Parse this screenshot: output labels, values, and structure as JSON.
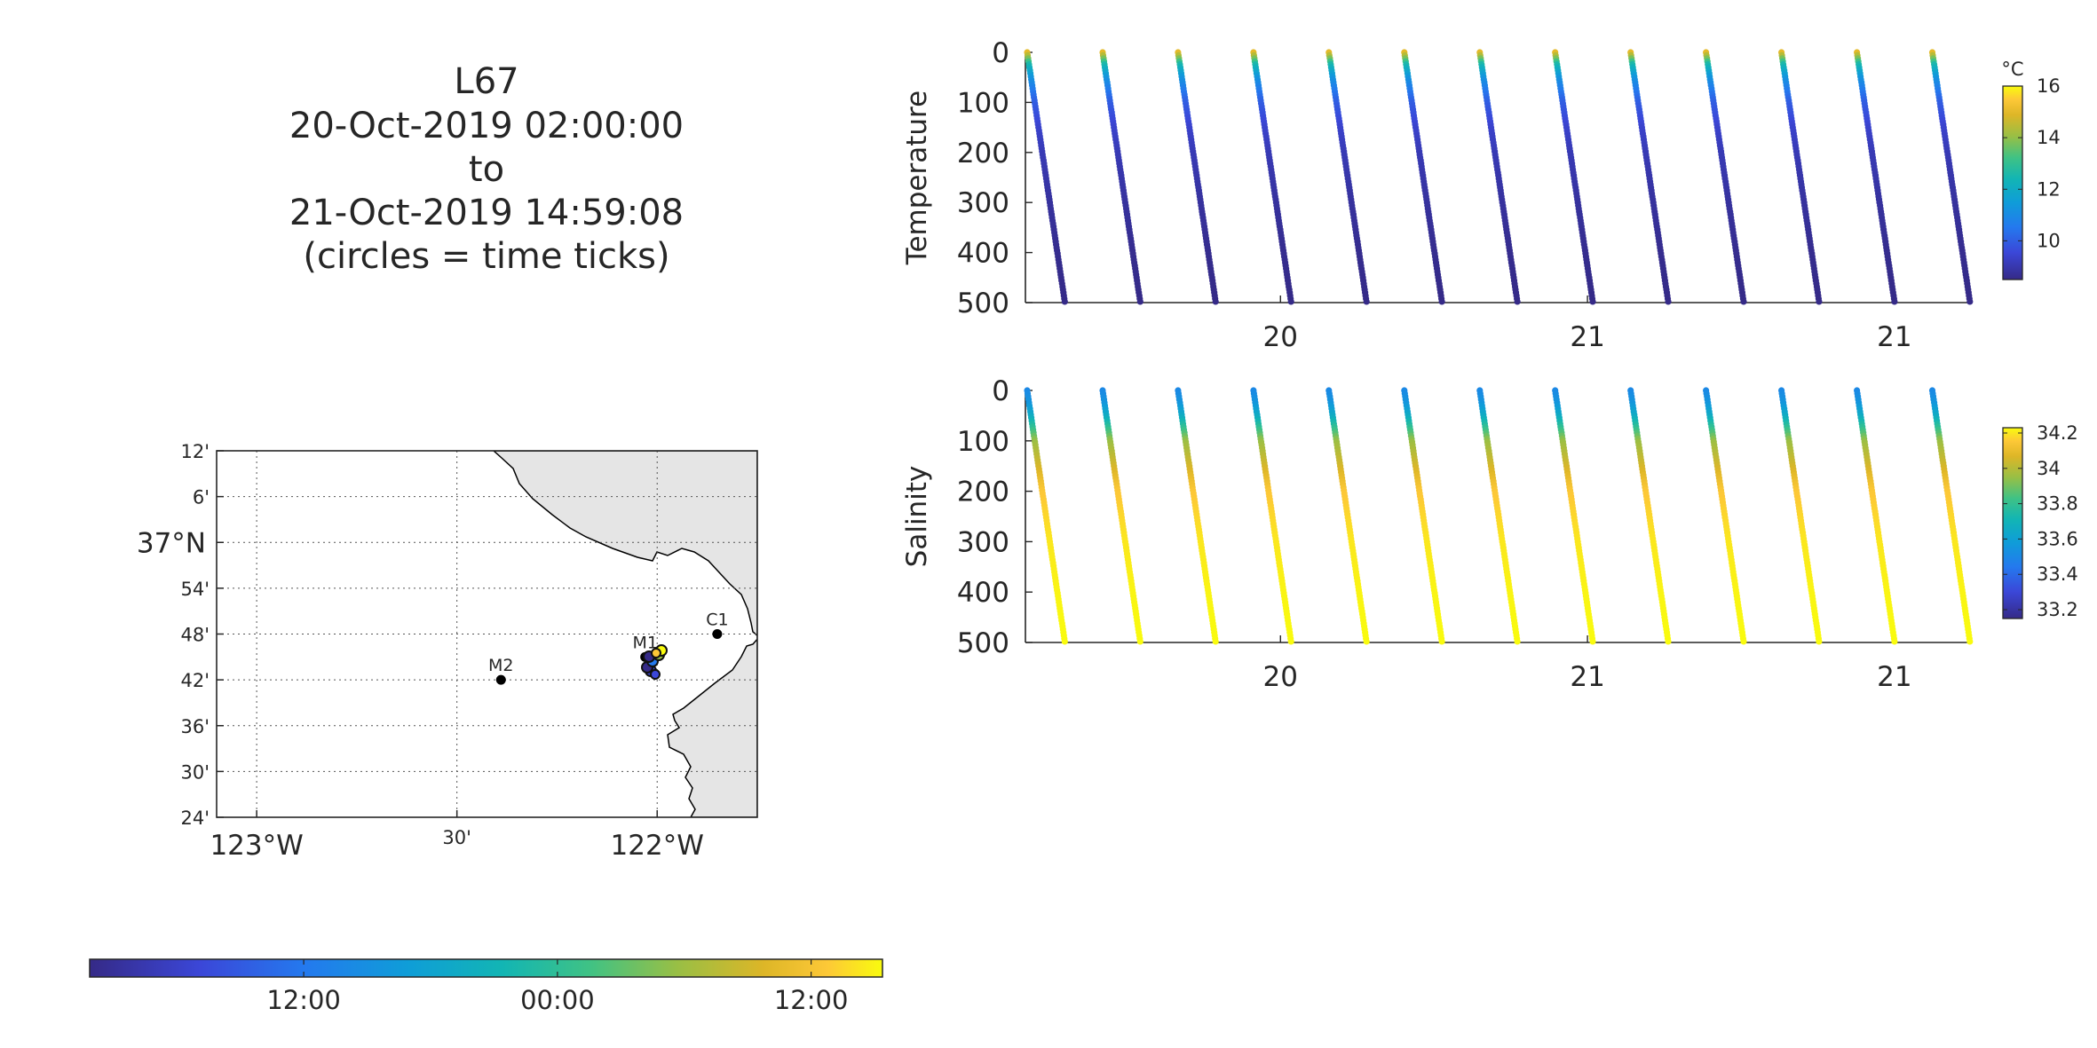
{
  "header": {
    "lines": [
      "L67",
      "20-Oct-2019 02:00:00",
      "to",
      "21-Oct-2019 14:59:08",
      "(circles = time ticks)"
    ]
  },
  "map": {
    "lat_ticks": [
      "12'",
      "6'",
      "37°N",
      "54'",
      "48'",
      "42'",
      "36'",
      "30'",
      "24'"
    ],
    "lat_values": [
      37.2,
      37.1,
      37.0,
      36.9,
      36.8,
      36.7,
      36.6,
      36.5,
      36.4
    ],
    "lon_ticks": [
      "123°W",
      "30'",
      "122°W"
    ],
    "lon_values": [
      -123.0,
      -122.5,
      -122.0
    ],
    "lat_range": [
      36.4,
      37.2
    ],
    "lon_range": [
      -123.1,
      -121.75
    ],
    "land_color": "#e5e5e5",
    "grid": "dotted",
    "stations": [
      {
        "name": "M2",
        "lon": -122.39,
        "lat": 36.7
      },
      {
        "name": "M1",
        "lon": -122.03,
        "lat": 36.75
      },
      {
        "name": "C1",
        "lon": -121.85,
        "lat": 36.8
      }
    ]
  },
  "time_colorbar": {
    "ticks": [
      "12:00",
      "00:00",
      "12:00"
    ],
    "tick_fractions": [
      0.27,
      0.59,
      0.91
    ]
  },
  "chart_data": [
    {
      "type": "scatter",
      "ylabel": "Temperature",
      "ylim": [
        0,
        500
      ],
      "y_reversed": true,
      "yticks": [
        0,
        100,
        200,
        300,
        400,
        500
      ],
      "xticks": [
        "20",
        "21",
        "21"
      ],
      "xtick_fractions": [
        0.27,
        0.595,
        0.92
      ],
      "profiles_start_x": [
        0.0,
        0.08,
        0.16,
        0.24,
        0.32,
        0.4,
        0.48,
        0.56,
        0.64,
        0.72,
        0.8,
        0.88,
        0.96
      ],
      "profile_x_drift": 0.04,
      "depth_values": [
        0,
        25,
        50,
        75,
        100,
        150,
        200,
        300,
        400,
        500
      ],
      "profile_values": [
        15.0,
        12.5,
        11.3,
        10.6,
        10.0,
        9.4,
        9.1,
        8.8,
        8.6,
        8.5
      ],
      "colorbar": {
        "label": "°C",
        "ticks": [
          10,
          12,
          14,
          16
        ],
        "range": [
          8.5,
          16
        ]
      }
    },
    {
      "type": "scatter",
      "ylabel": "Salinity",
      "ylim": [
        0,
        500
      ],
      "y_reversed": true,
      "yticks": [
        0,
        100,
        200,
        300,
        400,
        500
      ],
      "xticks": [
        "20",
        "21",
        "21"
      ],
      "xtick_fractions": [
        0.27,
        0.595,
        0.92
      ],
      "profiles_start_x": [
        0.0,
        0.08,
        0.16,
        0.24,
        0.32,
        0.4,
        0.48,
        0.56,
        0.64,
        0.72,
        0.8,
        0.88,
        0.96
      ],
      "profile_x_drift": 0.04,
      "depth_values": [
        0,
        25,
        50,
        75,
        100,
        150,
        200,
        300,
        400,
        500
      ],
      "profile_values": [
        33.5,
        33.55,
        33.65,
        33.8,
        33.95,
        34.05,
        34.15,
        34.2,
        34.22,
        34.23
      ],
      "colorbar": {
        "label": "",
        "ticks": [
          33.2,
          33.4,
          33.6,
          33.8,
          34,
          34.2
        ],
        "range": [
          33.15,
          34.23
        ]
      }
    }
  ]
}
